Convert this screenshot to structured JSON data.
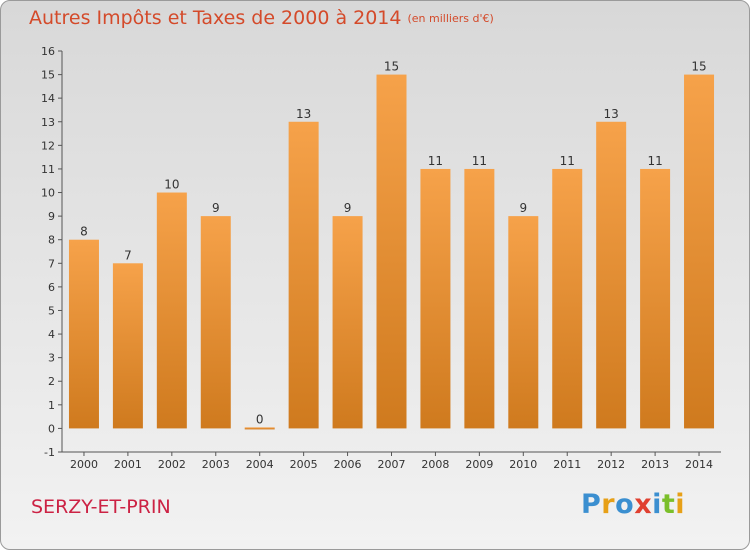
{
  "title": "Autres Impôts et Taxes de 2000 à 2014",
  "title_unit": "(en milliers d'€)",
  "commune": "SERZY-ET-PRIN",
  "logo": {
    "letters": [
      "P",
      "r",
      "o",
      "x",
      "i",
      "t",
      "i"
    ]
  },
  "colors": {
    "bar_light": "#f6a24a",
    "bar_dark": "#cf7a1e",
    "title": "#d44a2a",
    "commune": "#cc2244"
  },
  "chart_data": {
    "type": "bar",
    "title": "Autres Impôts et Taxes de 2000 à 2014",
    "subtitle": "(en milliers d'€)",
    "xlabel": "",
    "ylabel": "",
    "categories": [
      "2000",
      "2001",
      "2002",
      "2003",
      "2004",
      "2005",
      "2006",
      "2007",
      "2008",
      "2009",
      "2010",
      "2011",
      "2012",
      "2013",
      "2014"
    ],
    "values": [
      8,
      7,
      10,
      9,
      0,
      13,
      9,
      15,
      11,
      11,
      9,
      11,
      13,
      11,
      15
    ],
    "data_labels": [
      "8",
      "7",
      "10",
      "9",
      "0",
      "13",
      "9",
      "15",
      "11",
      "11",
      "9",
      "11",
      "13",
      "11",
      "15"
    ],
    "ylim": [
      -1,
      16
    ],
    "yticks": [
      "-1",
      "0",
      "1",
      "2",
      "3",
      "4",
      "5",
      "6",
      "7",
      "8",
      "9",
      "10",
      "11",
      "12",
      "13",
      "14",
      "15",
      "16"
    ],
    "grid": false,
    "legend": "none"
  }
}
